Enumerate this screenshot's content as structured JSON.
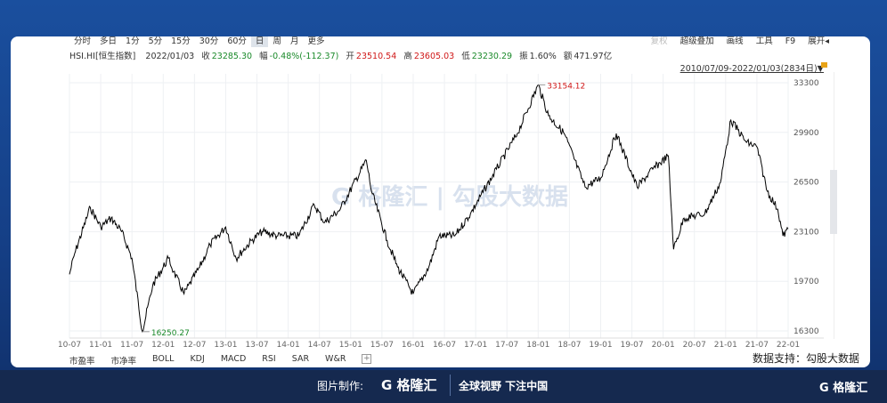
{
  "toolbar": {
    "periods": [
      "分时",
      "多日",
      "1分",
      "5分",
      "15分",
      "30分",
      "60分",
      "日",
      "周",
      "月",
      "更多"
    ],
    "active": "日",
    "right": [
      "复权",
      "超级叠加",
      "画线",
      "工具",
      "F9",
      "展开◂"
    ]
  },
  "info": {
    "symbol": "HSI.HI[恒生指数]",
    "date": "2022/01/03",
    "close_label": "收",
    "close": "23285.30",
    "change_label": "幅",
    "change": "-0.48%(-112.37)",
    "open_label": "开",
    "open": "23510.54",
    "high_label": "高",
    "high": "23605.03",
    "low_label": "低",
    "low": "23230.29",
    "amp_label": "振",
    "amp": "1.60%",
    "amount_label": "额",
    "amount": "471.97亿"
  },
  "range": "2010/07/09-2022/01/03(2834日)▼",
  "watermark": "G 格隆汇 | 勾股大数据",
  "indicators": [
    "市盈率",
    "市净率",
    "BOLL",
    "KDJ",
    "MACD",
    "RSI",
    "SAR",
    "W&R",
    "+"
  ],
  "support": "数据支持：勾股大数据",
  "footer": {
    "made": "图片制作:",
    "logo": "G 格隆汇",
    "slogan": "全球视野 下注中国",
    "right_logo": "G 格隆汇"
  },
  "colors": {
    "line": "#000000",
    "high_label": "#d01818",
    "low_label": "#1a8a2a"
  },
  "chart_data": {
    "type": "line",
    "ylim": [
      16300,
      33300
    ],
    "yticks": [
      33300,
      29900,
      26500,
      23100,
      19700,
      16300
    ],
    "xticks": [
      "10-07",
      "11-01",
      "11-07",
      "12-01",
      "12-07",
      "13-01",
      "13-07",
      "14-01",
      "14-07",
      "15-01",
      "15-07",
      "16-01",
      "16-07",
      "17-01",
      "17-07",
      "18-01",
      "18-07",
      "19-01",
      "19-07",
      "20-01",
      "20-07",
      "21-01",
      "21-07",
      "22-01"
    ],
    "grid": true,
    "max_label": "33154.12",
    "min_label": "16250.27",
    "series": [
      {
        "values": [
          [
            "2010-07",
            20180
          ],
          [
            "2010-08",
            21600
          ],
          [
            "2010-11",
            24760
          ],
          [
            "2011-01",
            23420
          ],
          [
            "2011-03",
            24030
          ],
          [
            "2011-05",
            23110
          ],
          [
            "2011-07",
            21280
          ],
          [
            "2011-09",
            16250
          ],
          [
            "2011-11",
            19450
          ],
          [
            "2012-02",
            21280
          ],
          [
            "2012-03",
            20370
          ],
          [
            "2012-05",
            18840
          ],
          [
            "2012-08",
            20670
          ],
          [
            "2012-10",
            22200
          ],
          [
            "2013-01",
            23420
          ],
          [
            "2013-03",
            21280
          ],
          [
            "2013-06",
            22500
          ],
          [
            "2013-08",
            23110
          ],
          [
            "2013-11",
            22810
          ],
          [
            "2014-03",
            22810
          ],
          [
            "2014-06",
            24940
          ],
          [
            "2014-08",
            23720
          ],
          [
            "2014-11",
            24640
          ],
          [
            "2015-04",
            27990
          ],
          [
            "2015-05",
            25860
          ],
          [
            "2015-08",
            22500
          ],
          [
            "2015-10",
            20670
          ],
          [
            "2016-01",
            18840
          ],
          [
            "2016-04",
            20670
          ],
          [
            "2016-06",
            22810
          ],
          [
            "2016-09",
            22810
          ],
          [
            "2016-12",
            24330
          ],
          [
            "2017-05",
            27380
          ],
          [
            "2017-09",
            29820
          ],
          [
            "2018-01",
            33154
          ],
          [
            "2018-03",
            31040
          ],
          [
            "2018-06",
            29820
          ],
          [
            "2018-10",
            26160
          ],
          [
            "2019-01",
            26770
          ],
          [
            "2019-04",
            29820
          ],
          [
            "2019-08",
            26160
          ],
          [
            "2019-11",
            27380
          ],
          [
            "2020-02",
            28300
          ],
          [
            "2020-03",
            21890
          ],
          [
            "2020-05",
            24030
          ],
          [
            "2020-09",
            24330
          ],
          [
            "2020-12",
            26470
          ],
          [
            "2021-02",
            30740
          ],
          [
            "2021-05",
            29210
          ],
          [
            "2021-07",
            28910
          ],
          [
            "2021-09",
            25860
          ],
          [
            "2021-11",
            24640
          ],
          [
            "2021-12",
            22810
          ],
          [
            "2022-01",
            23285
          ]
        ]
      }
    ]
  }
}
